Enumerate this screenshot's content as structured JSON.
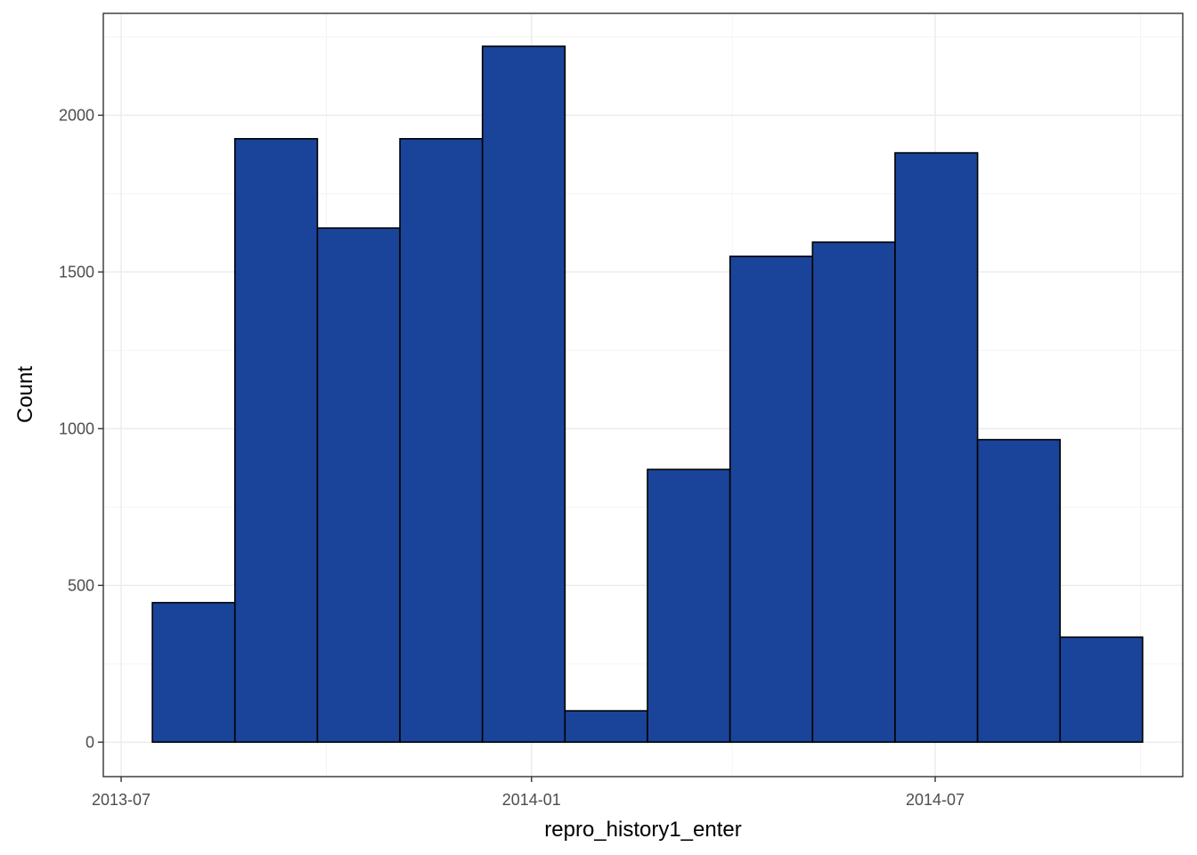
{
  "chart_data": {
    "type": "bar",
    "title": "",
    "xlabel": "repro_history1_enter",
    "ylabel": "Count",
    "bar_fill": "#1a4499",
    "bar_outline": "#000000",
    "grid": true,
    "legend": "none",
    "xlim": [
      "2013-06-23",
      "2014-10-20"
    ],
    "ylim": [
      -110,
      2325
    ],
    "x_ticks": [
      {
        "date": "2013-07-01",
        "label": "2013-07"
      },
      {
        "date": "2014-01-01",
        "label": "2014-01"
      },
      {
        "date": "2014-07-01",
        "label": "2014-07"
      }
    ],
    "x_minor_dates": [
      "2013-10-01",
      "2014-04-01",
      "2014-10-01"
    ],
    "y_ticks": [
      0,
      500,
      1000,
      1500,
      2000
    ],
    "y_minor": [
      250,
      750,
      1250,
      1750,
      2250
    ],
    "bins": [
      {
        "start": "2013-07-15",
        "end": "2013-08-21",
        "count": 445
      },
      {
        "start": "2013-08-21",
        "end": "2013-09-27",
        "count": 1925
      },
      {
        "start": "2013-09-27",
        "end": "2013-11-03",
        "count": 1640
      },
      {
        "start": "2013-11-03",
        "end": "2013-12-10",
        "count": 1925
      },
      {
        "start": "2013-12-10",
        "end": "2014-01-16",
        "count": 2220
      },
      {
        "start": "2014-01-16",
        "end": "2014-02-22",
        "count": 100
      },
      {
        "start": "2014-02-22",
        "end": "2014-03-31",
        "count": 870
      },
      {
        "start": "2014-03-31",
        "end": "2014-05-07",
        "count": 1550
      },
      {
        "start": "2014-05-07",
        "end": "2014-06-13",
        "count": 1595
      },
      {
        "start": "2014-06-13",
        "end": "2014-07-20",
        "count": 1880
      },
      {
        "start": "2014-07-20",
        "end": "2014-08-26",
        "count": 965
      },
      {
        "start": "2014-08-26",
        "end": "2014-10-02",
        "count": 335
      }
    ]
  }
}
